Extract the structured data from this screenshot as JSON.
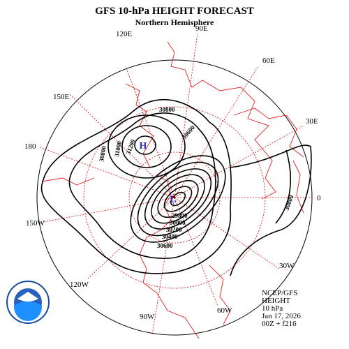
{
  "header": {
    "title": "GFS 10-hPa HEIGHT FORECAST",
    "subtitle": "Northern Hemisphere"
  },
  "longitude_labels": [
    "90E",
    "60E",
    "30E",
    "0",
    "30W",
    "60W",
    "90W",
    "120W",
    "150W",
    "180",
    "150E",
    "120E"
  ],
  "centers": {
    "high": "H",
    "low": "L"
  },
  "contour_labels": [
    "30800",
    "31000",
    "31200",
    "30600",
    "30800",
    "30600",
    "30400",
    "30200",
    "30000",
    "29800",
    "30800"
  ],
  "info": [
    "NCEP/GFS",
    "HEIGHT",
    "10 hPa",
    "Jan 17, 2026",
    "00Z + f216"
  ]
}
